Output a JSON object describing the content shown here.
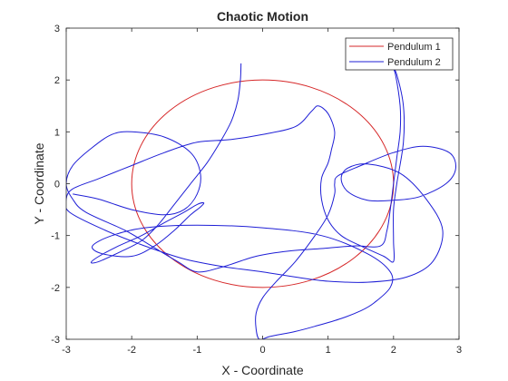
{
  "chart_data": {
    "type": "line",
    "title": "Chaotic Motion",
    "xlabel": "X - Coordinate",
    "ylabel": "Y - Coordinate",
    "xlim": [
      -3,
      3
    ],
    "ylim": [
      -3,
      3
    ],
    "xticks": [
      "-3",
      "-2",
      "-1",
      "0",
      "1",
      "2",
      "3"
    ],
    "yticks": [
      "3",
      "2",
      "1",
      "0",
      "-1",
      "-2",
      "-3"
    ],
    "grid": false,
    "legend_position": "top-right",
    "series": [
      {
        "name": "Pendulum 1",
        "color": "#d62728",
        "shape": "circle",
        "center": [
          0,
          0
        ],
        "radius": 2
      },
      {
        "name": "Pendulum 2",
        "color": "#1f1fd6",
        "points": [
          [
            -0.33,
            2.32
          ],
          [
            -0.34,
            2.0
          ],
          [
            -0.38,
            1.6
          ],
          [
            -0.48,
            1.2
          ],
          [
            -0.65,
            0.8
          ],
          [
            -0.85,
            0.4
          ],
          [
            -1.1,
            0.0
          ],
          [
            -1.35,
            -0.4
          ],
          [
            -1.6,
            -0.8
          ],
          [
            -1.85,
            -1.1
          ],
          [
            -2.15,
            -1.3
          ],
          [
            -2.5,
            -1.5
          ],
          [
            -2.62,
            -1.52
          ],
          [
            -2.5,
            -1.4
          ],
          [
            -2.2,
            -1.2
          ],
          [
            -1.85,
            -1.0
          ],
          [
            -1.5,
            -0.75
          ],
          [
            -1.2,
            -0.55
          ],
          [
            -1.0,
            -0.4
          ],
          [
            -0.9,
            -0.37
          ],
          [
            -0.95,
            -0.45
          ],
          [
            -1.1,
            -0.6
          ],
          [
            -1.35,
            -0.9
          ],
          [
            -1.65,
            -1.2
          ],
          [
            -2.0,
            -1.4
          ],
          [
            -2.45,
            -1.35
          ],
          [
            -2.6,
            -1.2
          ],
          [
            -2.3,
            -1.0
          ],
          [
            -1.8,
            -0.85
          ],
          [
            -1.0,
            -0.8
          ],
          [
            0.0,
            -0.85
          ],
          [
            0.9,
            -1.0
          ],
          [
            1.6,
            -1.35
          ],
          [
            1.95,
            -1.7
          ],
          [
            1.95,
            -2.0
          ],
          [
            1.7,
            -2.3
          ],
          [
            1.5,
            -2.45
          ],
          [
            1.2,
            -2.6
          ],
          [
            0.8,
            -2.75
          ],
          [
            0.5,
            -2.85
          ],
          [
            0.3,
            -2.9
          ],
          [
            0.1,
            -2.95
          ],
          [
            -0.05,
            -3.0
          ],
          [
            -0.1,
            -2.8
          ],
          [
            -0.1,
            -2.5
          ],
          [
            0.0,
            -2.2
          ],
          [
            0.2,
            -1.9
          ],
          [
            0.5,
            -1.5
          ],
          [
            0.8,
            -1.0
          ],
          [
            1.0,
            -0.6
          ],
          [
            1.1,
            -0.2
          ],
          [
            1.1,
            0.0
          ],
          [
            1.15,
            0.15
          ],
          [
            1.5,
            0.35
          ],
          [
            2.0,
            0.6
          ],
          [
            2.45,
            0.72
          ],
          [
            2.85,
            0.6
          ],
          [
            2.95,
            0.3
          ],
          [
            2.8,
            0.0
          ],
          [
            2.4,
            -0.25
          ],
          [
            2.0,
            -0.32
          ],
          [
            1.6,
            -0.32
          ],
          [
            1.3,
            -0.15
          ],
          [
            1.2,
            0.1
          ],
          [
            1.3,
            0.3
          ],
          [
            1.6,
            0.38
          ],
          [
            2.1,
            0.2
          ],
          [
            2.5,
            -0.3
          ],
          [
            2.75,
            -0.9
          ],
          [
            2.6,
            -1.5
          ],
          [
            2.2,
            -1.8
          ],
          [
            1.6,
            -1.9
          ],
          [
            1.0,
            -1.88
          ],
          [
            0.5,
            -1.8
          ],
          [
            0.0,
            -1.7
          ],
          [
            -0.6,
            -1.6
          ],
          [
            -1.2,
            -1.45
          ],
          [
            -1.8,
            -1.2
          ],
          [
            -2.4,
            -0.9
          ],
          [
            -2.95,
            -0.55
          ],
          [
            -3.0,
            -0.3
          ],
          [
            -2.9,
            -0.1
          ],
          [
            -2.5,
            0.1
          ],
          [
            -2.0,
            0.35
          ],
          [
            -1.5,
            0.6
          ],
          [
            -1.0,
            0.8
          ],
          [
            -0.5,
            0.85
          ],
          [
            0.0,
            0.95
          ],
          [
            0.5,
            1.1
          ],
          [
            0.75,
            1.4
          ],
          [
            0.85,
            1.5
          ],
          [
            1.0,
            1.35
          ],
          [
            1.1,
            1.0
          ],
          [
            1.05,
            0.65
          ],
          [
            1.0,
            0.4
          ],
          [
            0.9,
            0.1
          ],
          [
            0.9,
            -0.3
          ],
          [
            1.0,
            -0.7
          ],
          [
            1.2,
            -1.0
          ],
          [
            1.5,
            -1.2
          ],
          [
            1.85,
            -1.4
          ],
          [
            2.0,
            -1.5
          ],
          [
            2.0,
            -1.1
          ],
          [
            2.0,
            -0.5
          ],
          [
            2.05,
            0.0
          ],
          [
            2.15,
            0.8
          ],
          [
            2.15,
            1.5
          ],
          [
            2.05,
            2.1
          ],
          [
            1.98,
            2.25
          ],
          [
            2.03,
            2.1
          ],
          [
            2.1,
            1.5
          ],
          [
            2.1,
            1.0
          ],
          [
            2.05,
            0.5
          ],
          [
            2.0,
            0.0
          ],
          [
            1.95,
            -0.5
          ],
          [
            1.9,
            -0.9
          ],
          [
            1.8,
            -1.2
          ],
          [
            1.4,
            -1.2
          ],
          [
            0.9,
            -1.25
          ],
          [
            0.4,
            -1.3
          ],
          [
            -0.1,
            -1.4
          ],
          [
            -0.6,
            -1.6
          ],
          [
            -1.0,
            -1.7
          ],
          [
            -1.3,
            -1.5
          ],
          [
            -1.7,
            -1.2
          ],
          [
            -2.1,
            -0.9
          ],
          [
            -2.7,
            -0.55
          ],
          [
            -2.9,
            -0.3
          ],
          [
            -3.0,
            0.0
          ],
          [
            -2.9,
            0.35
          ],
          [
            -2.6,
            0.7
          ],
          [
            -2.3,
            0.95
          ],
          [
            -2.0,
            1.0
          ],
          [
            -1.5,
            0.9
          ],
          [
            -1.1,
            0.6
          ],
          [
            -0.95,
            0.2
          ],
          [
            -1.0,
            -0.2
          ],
          [
            -1.2,
            -0.5
          ],
          [
            -1.5,
            -0.6
          ],
          [
            -2.0,
            -0.5
          ],
          [
            -2.5,
            -0.3
          ],
          [
            -2.9,
            -0.2
          ]
        ]
      }
    ]
  }
}
